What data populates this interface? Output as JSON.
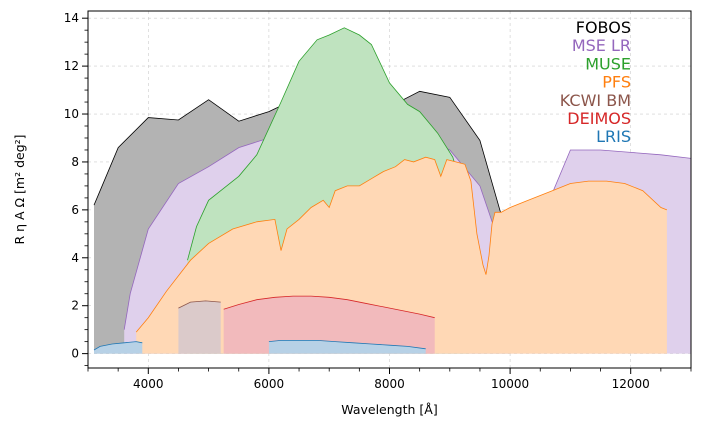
{
  "chart_data": {
    "type": "area",
    "xlabel": "Wavelength [Å]",
    "ylabel": "R η A Ω [m² deg²]",
    "xlim": [
      3000,
      13000
    ],
    "ylim": [
      -0.6,
      14.3
    ],
    "xticks": [
      4000,
      6000,
      8000,
      10000,
      12000
    ],
    "yticks": [
      0,
      2,
      4,
      6,
      8,
      10,
      12,
      14
    ],
    "grid": true,
    "legend_placement": "top-right",
    "series": [
      {
        "name": "FOBOS",
        "color": "#000000",
        "fill": "#b3b3b3",
        "x": [
          3100,
          3200,
          3500,
          4000,
          4500,
          5000,
          5500,
          6000,
          6500,
          7000,
          7500,
          8000,
          8500,
          9000,
          9500,
          10000
        ],
        "y": [
          6.2,
          6.8,
          8.6,
          9.85,
          9.75,
          10.6,
          9.7,
          10.1,
          10.7,
          10.75,
          9.55,
          10.3,
          10.95,
          10.7,
          8.9,
          4.5
        ]
      },
      {
        "name": "MSE LR",
        "color": "#9467bd",
        "fill": "#dfd0ec",
        "x": [
          3600,
          3700,
          4000,
          4500,
          5000,
          5500,
          6000,
          6500,
          7000,
          7500,
          8000,
          8500,
          9000,
          9500,
          10000,
          10500,
          11000,
          11500,
          12000,
          12500,
          13000
        ],
        "y": [
          1.0,
          2.5,
          5.2,
          7.1,
          7.8,
          8.6,
          9.0,
          9.4,
          9.4,
          9.4,
          9.4,
          9.1,
          8.5,
          7.0,
          3.3,
          5.5,
          8.5,
          8.5,
          8.4,
          8.3,
          8.15
        ]
      },
      {
        "name": "MUSE",
        "color": "#2ca02c",
        "fill": "#bfe3bf",
        "x": [
          4650,
          4800,
          5000,
          5200,
          5500,
          5800,
          6200,
          6500,
          6800,
          7000,
          7250,
          7500,
          7700,
          8000,
          8300,
          8500,
          8800,
          9050,
          9300
        ],
        "y": [
          3.9,
          5.3,
          6.4,
          6.8,
          7.4,
          8.3,
          10.5,
          12.2,
          13.1,
          13.3,
          13.6,
          13.3,
          12.9,
          11.3,
          10.4,
          10.1,
          9.2,
          8.2,
          6.0
        ]
      },
      {
        "name": "PFS",
        "color": "#ff7f0e",
        "fill": "#ffd8b5",
        "x": [
          3800,
          4000,
          4300,
          4700,
          5000,
          5400,
          5800,
          6100,
          6200,
          6300,
          6400,
          6500,
          6700,
          6900,
          7000,
          7100,
          7300,
          7500,
          7700,
          7900,
          8100,
          8250,
          8400,
          8600,
          8750,
          8850,
          8950,
          9100,
          9250,
          9350,
          9450,
          9550,
          9600,
          9650,
          9700,
          9750,
          9850,
          10000,
          10300,
          10700,
          11000,
          11300,
          11600,
          11900,
          12200,
          12500,
          12600
        ],
        "y": [
          0.9,
          1.5,
          2.6,
          3.9,
          4.6,
          5.2,
          5.5,
          5.6,
          4.3,
          5.2,
          5.4,
          5.6,
          6.1,
          6.4,
          6.1,
          6.8,
          7.0,
          7.0,
          7.3,
          7.6,
          7.8,
          8.1,
          8.0,
          8.2,
          8.1,
          7.4,
          8.1,
          8.0,
          7.9,
          7.2,
          5.0,
          3.7,
          3.3,
          4.1,
          5.4,
          5.9,
          5.9,
          6.1,
          6.4,
          6.8,
          7.1,
          7.2,
          7.2,
          7.1,
          6.8,
          6.1,
          6.0
        ]
      },
      {
        "name": "KCWI BM",
        "color": "#8c564b",
        "fill": "#dbcaca",
        "x": [
          4500,
          4700,
          4950,
          5200
        ],
        "y": [
          1.9,
          2.15,
          2.2,
          2.15
        ]
      },
      {
        "name": "DEIMOS",
        "color": "#d62728",
        "fill": "#f2babc",
        "x": [
          5250,
          5500,
          5800,
          6100,
          6400,
          6700,
          7000,
          7300,
          7600,
          7900,
          8200,
          8500,
          8750
        ],
        "y": [
          1.85,
          2.05,
          2.25,
          2.35,
          2.4,
          2.4,
          2.35,
          2.25,
          2.1,
          1.95,
          1.8,
          1.65,
          1.5
        ]
      },
      {
        "name": "LRIS",
        "color": "#1f77b4",
        "fill": "#b7d1e6",
        "segments": [
          {
            "x": [
              3100,
              3200,
              3400,
              3600,
              3800,
              3900
            ],
            "y": [
              0.15,
              0.3,
              0.4,
              0.45,
              0.5,
              0.45
            ]
          },
          {
            "x": [
              6000,
              6200,
              6500,
              6800,
              7100,
              7400,
              7700,
              8000,
              8300,
              8600
            ],
            "y": [
              0.5,
              0.55,
              0.55,
              0.55,
              0.5,
              0.45,
              0.4,
              0.35,
              0.3,
              0.2
            ]
          }
        ]
      }
    ],
    "legend": [
      "FOBOS",
      "MSE LR",
      "MUSE",
      "PFS",
      "KCWI BM",
      "DEIMOS",
      "LRIS"
    ]
  }
}
